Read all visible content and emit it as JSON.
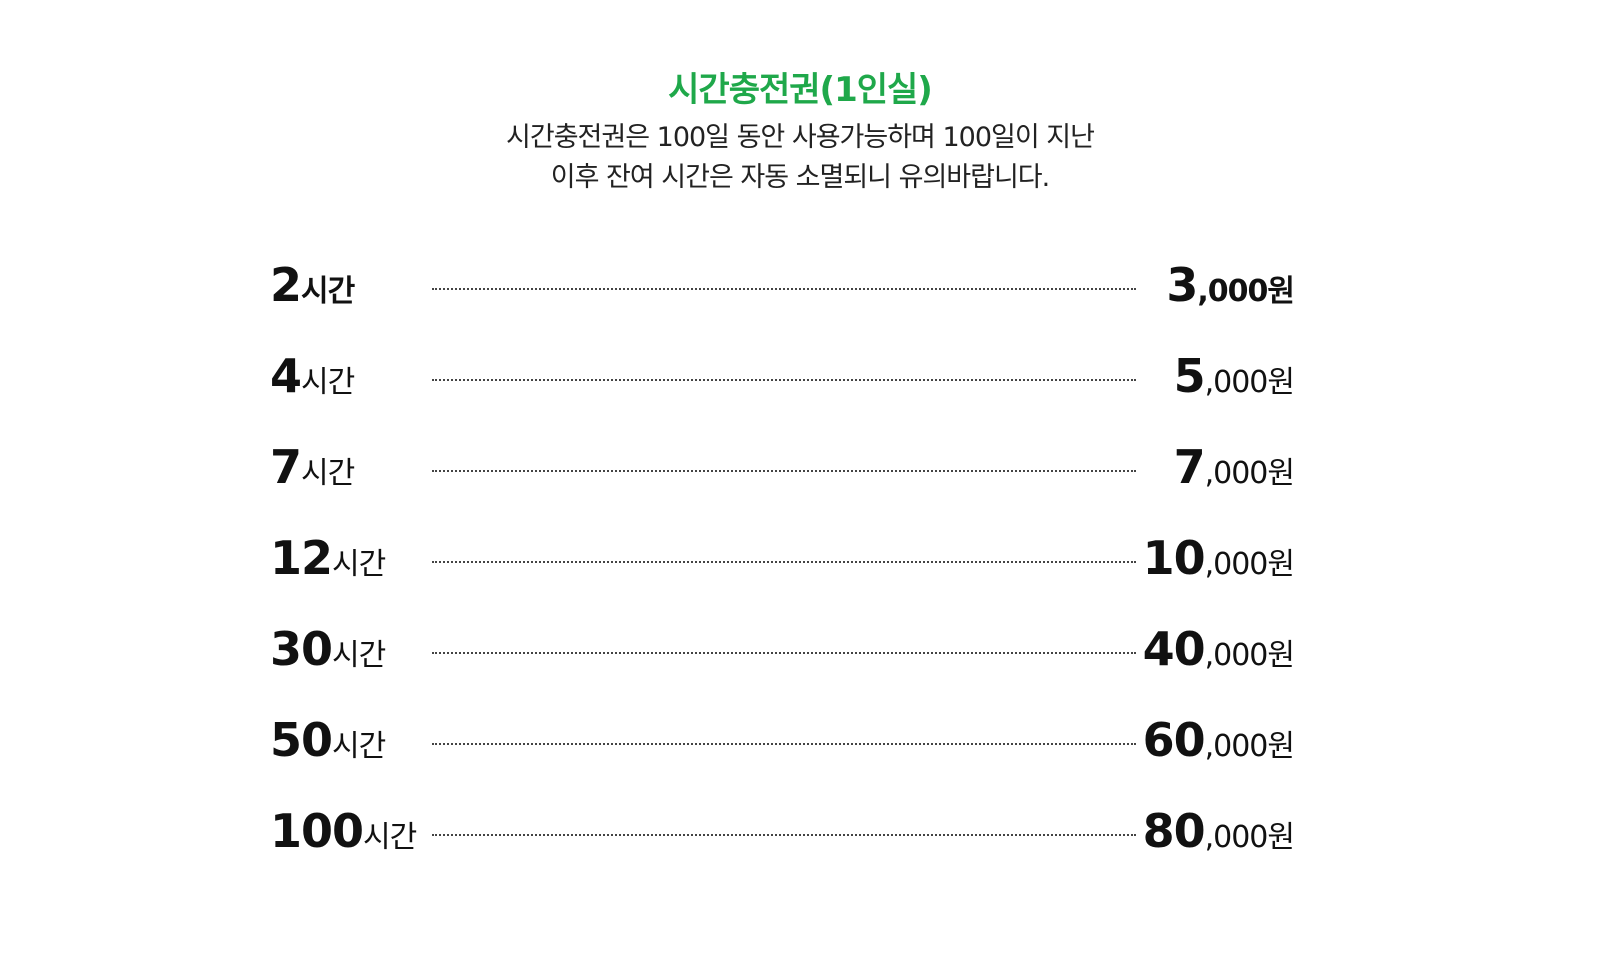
{
  "header": {
    "title": "시간충전권(1인실)",
    "title_color": "#1fa84a",
    "notice_line1": "시간충전권은 100일 동안 사용가능하며 100일이 지난",
    "notice_line2": "이후 잔여 시간은 자동 소멸되니 유의바랍니다."
  },
  "plans": [
    {
      "hours": "2",
      "hours_unit": "시간",
      "price_major": "3",
      "price_rest": ",000원"
    },
    {
      "hours": "4",
      "hours_unit": "시간",
      "price_major": "5",
      "price_rest": ",000원"
    },
    {
      "hours": "7",
      "hours_unit": "시간",
      "price_major": "7",
      "price_rest": ",000원"
    },
    {
      "hours": "12",
      "hours_unit": "시간",
      "price_major": "10",
      "price_rest": ",000원"
    },
    {
      "hours": "30",
      "hours_unit": "시간",
      "price_major": "40",
      "price_rest": ",000원"
    },
    {
      "hours": "50",
      "hours_unit": "시간",
      "price_major": "60",
      "price_rest": ",000원"
    },
    {
      "hours": "100",
      "hours_unit": "시간",
      "price_major": "80",
      "price_rest": ",000원"
    }
  ]
}
